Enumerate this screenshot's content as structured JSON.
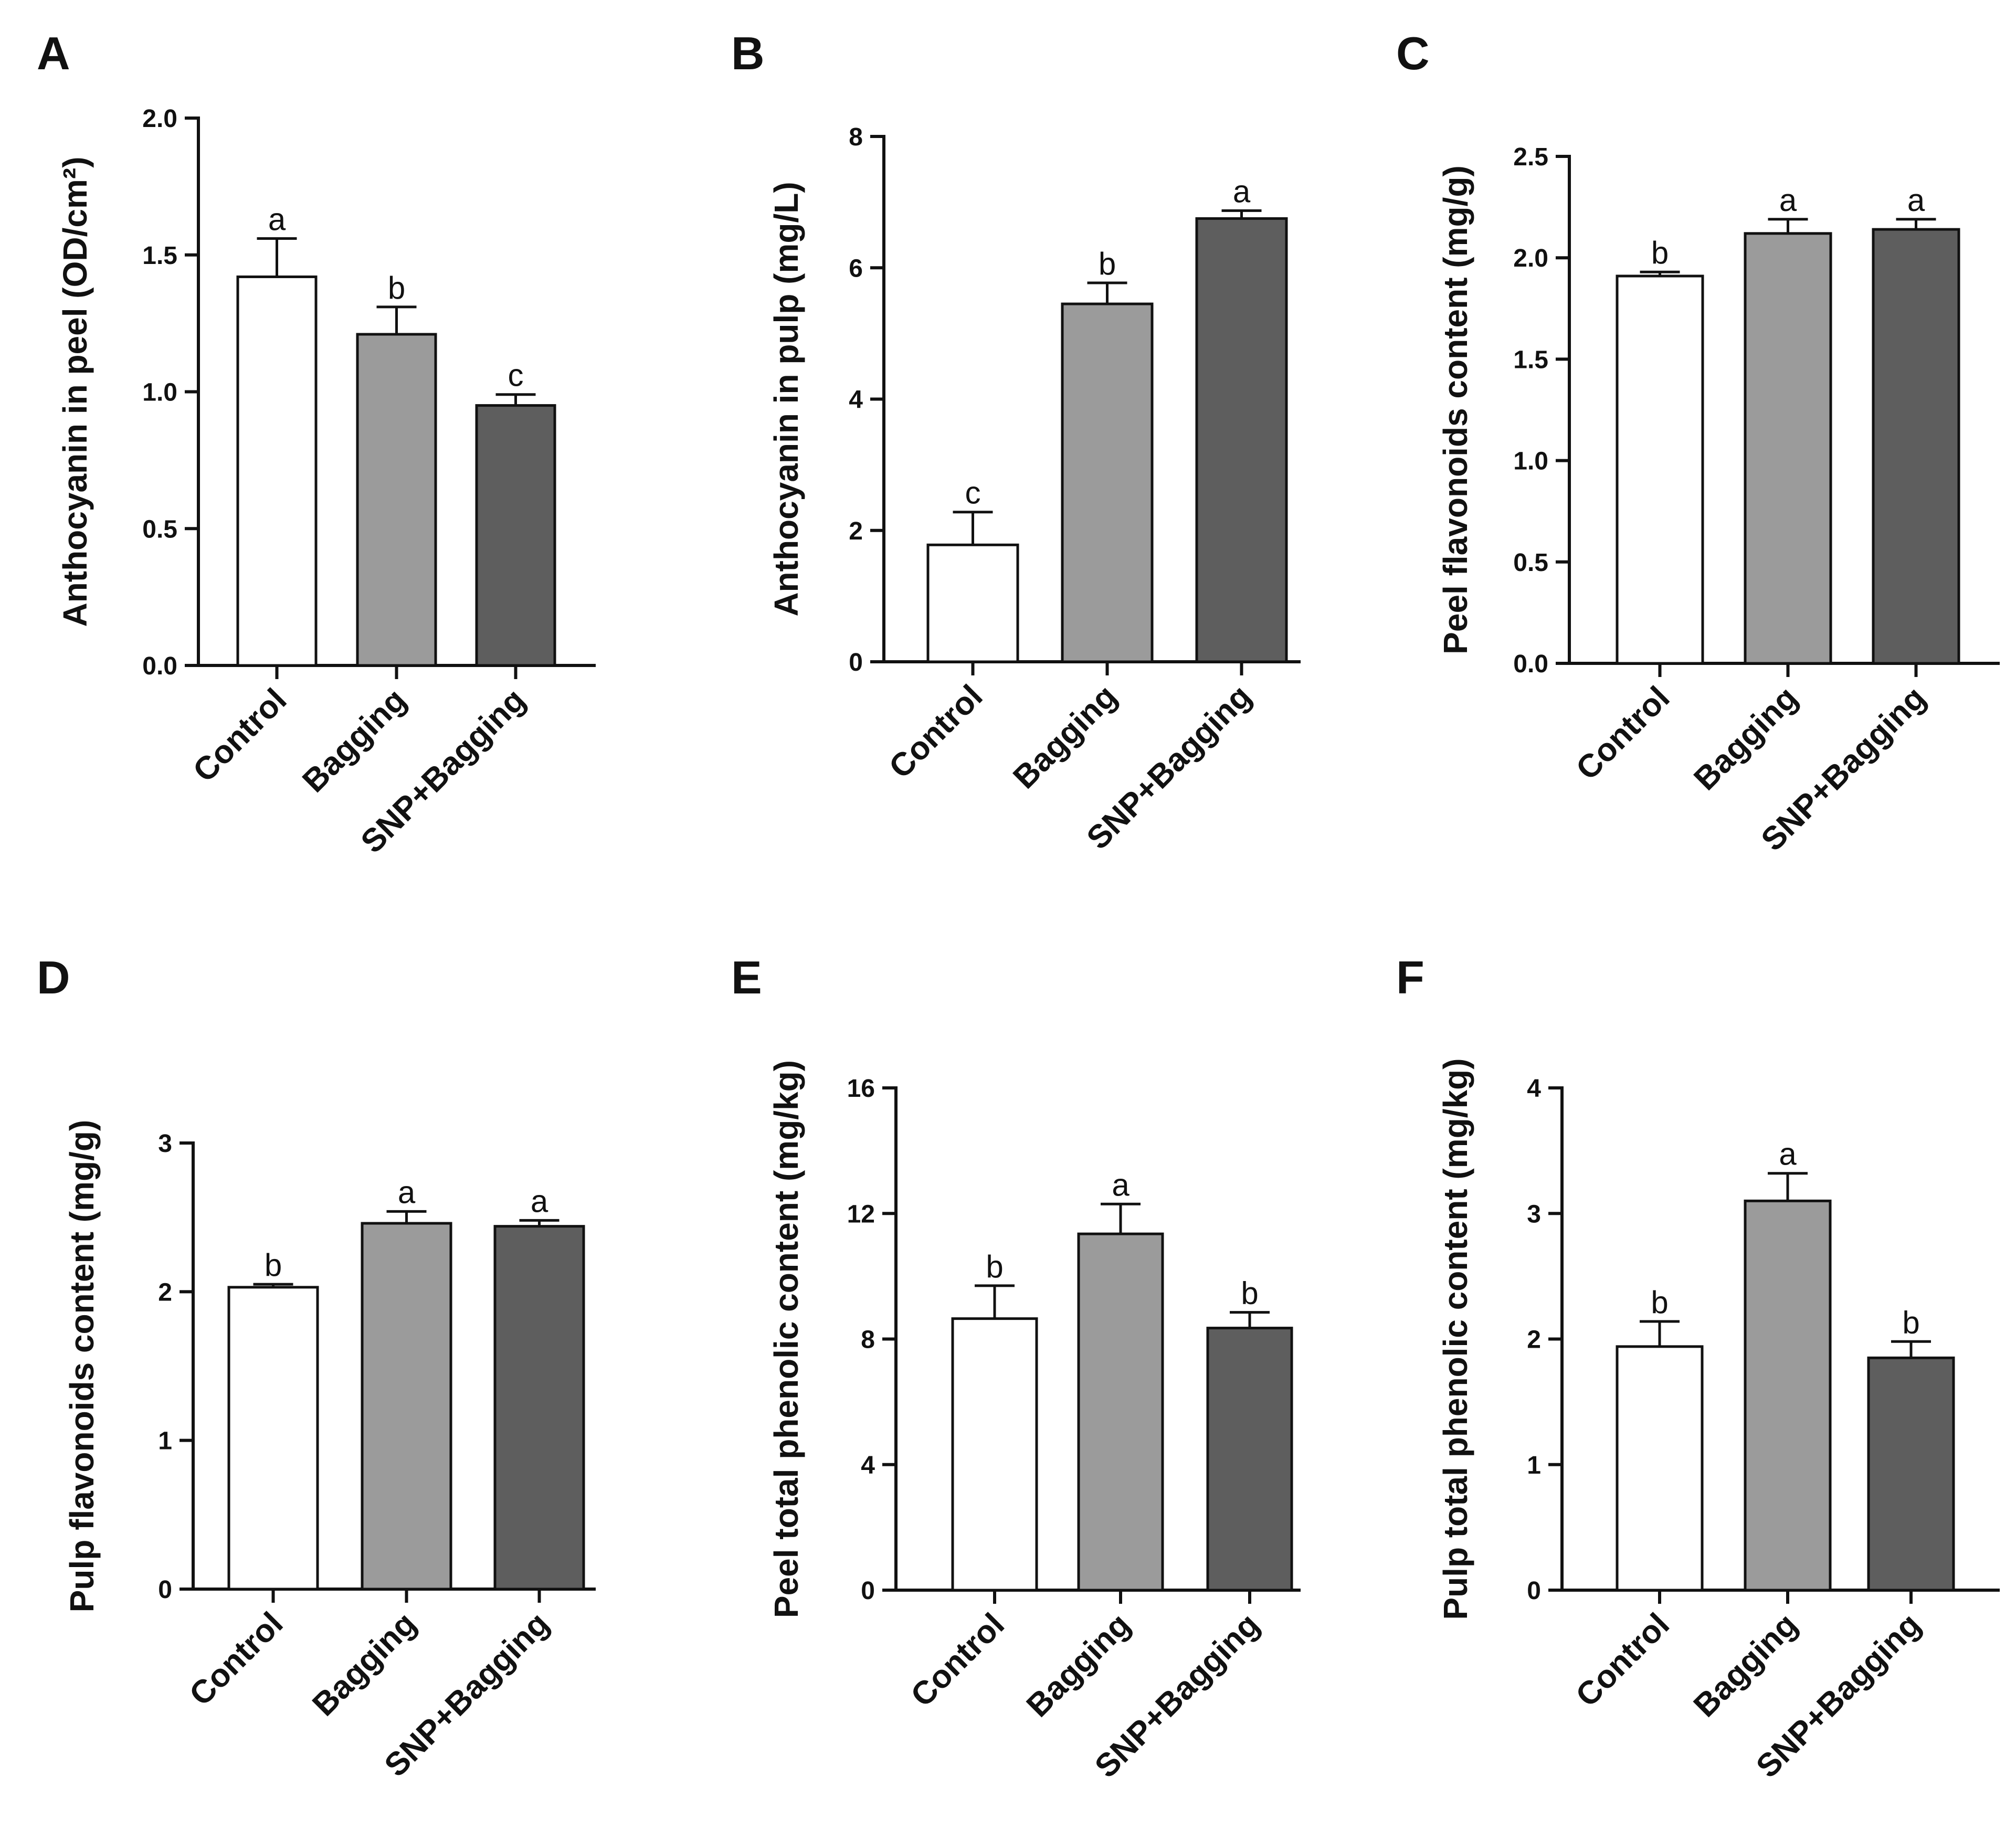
{
  "chart_data": [
    {
      "panel": "A",
      "type": "bar",
      "ylabel": "Anthocyanin in peel (OD/cm²)",
      "ylim": [
        0,
        2.0
      ],
      "yticks": [
        "0.0",
        "0.5",
        "1.0",
        "1.5",
        "2.0"
      ],
      "ytick_values": [
        0,
        0.5,
        1.0,
        1.5,
        2.0
      ],
      "categories": [
        "Control",
        "Bagging",
        "SNP+Bagging"
      ],
      "values": [
        1.42,
        1.21,
        0.95
      ],
      "errors": [
        0.14,
        0.1,
        0.04
      ],
      "significance": [
        "a",
        "b",
        "c"
      ]
    },
    {
      "panel": "B",
      "type": "bar",
      "ylabel": "Anthocyanin in pulp (mg/L)",
      "ylim": [
        0,
        8
      ],
      "yticks": [
        "0",
        "2",
        "4",
        "6",
        "8"
      ],
      "ytick_values": [
        0,
        2,
        4,
        6,
        8
      ],
      "categories": [
        "Control",
        "Bagging",
        "SNP+Bagging"
      ],
      "values": [
        1.78,
        5.45,
        6.75
      ],
      "errors": [
        0.5,
        0.32,
        0.12
      ],
      "significance": [
        "c",
        "b",
        "a"
      ]
    },
    {
      "panel": "C",
      "type": "bar",
      "ylabel": "Peel flavonoids content (mg/g)",
      "ylim": [
        0,
        2.5
      ],
      "yticks": [
        "0.0",
        "0.5",
        "1.0",
        "1.5",
        "2.0",
        "2.5"
      ],
      "ytick_values": [
        0,
        0.5,
        1.0,
        1.5,
        2.0,
        2.5
      ],
      "categories": [
        "Control",
        "Bagging",
        "SNP+Bagging"
      ],
      "values": [
        1.91,
        2.12,
        2.14
      ],
      "errors": [
        0.02,
        0.07,
        0.05
      ],
      "significance": [
        "b",
        "a",
        "a"
      ]
    },
    {
      "panel": "D",
      "type": "bar",
      "ylabel": "Pulp flavonoids content (mg/g)",
      "ylim": [
        0,
        3
      ],
      "yticks": [
        "0",
        "1",
        "2",
        "3"
      ],
      "ytick_values": [
        0,
        1,
        2,
        3
      ],
      "categories": [
        "Control",
        "Bagging",
        "SNP+Bagging"
      ],
      "values": [
        2.03,
        2.46,
        2.44
      ],
      "errors": [
        0.02,
        0.08,
        0.04
      ],
      "significance": [
        "b",
        "a",
        "a"
      ]
    },
    {
      "panel": "E",
      "type": "bar",
      "ylabel": "Peel total phenolic content (mg/kg)",
      "ylim": [
        0,
        16
      ],
      "yticks": [
        "0",
        "4",
        "8",
        "12",
        "16"
      ],
      "ytick_values": [
        0,
        4,
        8,
        12,
        16
      ],
      "categories": [
        "Control",
        "Bagging",
        "SNP+Bagging"
      ],
      "values": [
        8.65,
        11.35,
        8.35
      ],
      "errors": [
        1.05,
        0.95,
        0.5
      ],
      "significance": [
        "b",
        "a",
        "b"
      ]
    },
    {
      "panel": "F",
      "type": "bar",
      "ylabel": "Pulp total phenolic content (mg/kg)",
      "ylim": [
        0,
        4
      ],
      "yticks": [
        "0",
        "1",
        "2",
        "3",
        "4"
      ],
      "ytick_values": [
        0,
        1,
        2,
        3,
        4
      ],
      "categories": [
        "Control",
        "Bagging",
        "SNP+Bagging"
      ],
      "values": [
        1.94,
        3.1,
        1.85
      ],
      "errors": [
        0.2,
        0.22,
        0.13
      ],
      "significance": [
        "b",
        "a",
        "b"
      ]
    }
  ],
  "bar_colors": [
    "#ffffff",
    "#9b9b9b",
    "#5e5e5e"
  ],
  "axis_color": "#111111"
}
